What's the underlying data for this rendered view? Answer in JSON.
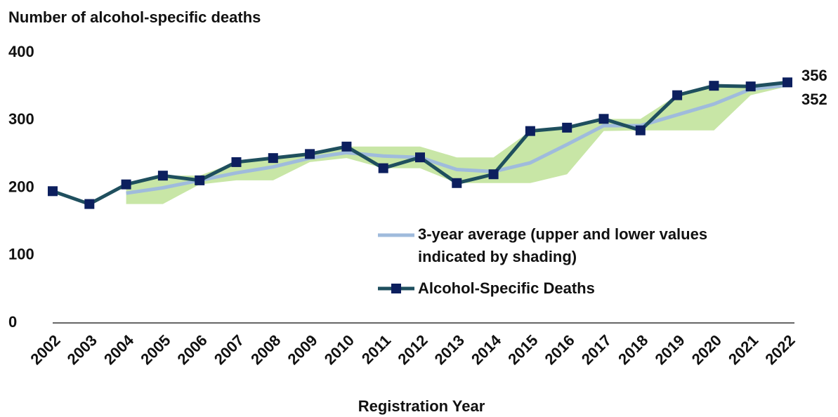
{
  "chart_data": {
    "type": "line",
    "title": "Number of alcohol-specific deaths",
    "x_label": "Registration Year",
    "categories": [
      "2002",
      "2003",
      "2004",
      "2005",
      "2006",
      "2007",
      "2008",
      "2009",
      "2010",
      "2011",
      "2012",
      "2013",
      "2014",
      "2015",
      "2016",
      "2017",
      "2018",
      "2019",
      "2020",
      "2021",
      "2022"
    ],
    "series": [
      {
        "name": "3-year average (upper and lower values indicated by shading)",
        "color": "#9fbbdc",
        "band_color": "#c8e6a6",
        "values": [
          null,
          null,
          192,
          200,
          211,
          222,
          231,
          244,
          252,
          247,
          245,
          227,
          224,
          237,
          264,
          292,
          292,
          308,
          324,
          346,
          352
        ],
        "lower": [
          null,
          null,
          176,
          176,
          205,
          211,
          211,
          238,
          244,
          229,
          229,
          207,
          207,
          207,
          220,
          284,
          285,
          285,
          285,
          337,
          350
        ],
        "upper": [
          null,
          null,
          205,
          218,
          218,
          238,
          244,
          250,
          261,
          261,
          261,
          245,
          245,
          284,
          289,
          302,
          302,
          337,
          351,
          351,
          356
        ]
      },
      {
        "name": "Alcohol-Specific Deaths",
        "color": "#1f4f5e",
        "marker_color": "#0c1f5e",
        "values": [
          195,
          176,
          205,
          218,
          211,
          238,
          244,
          250,
          261,
          229,
          245,
          207,
          220,
          284,
          289,
          302,
          285,
          337,
          351,
          350,
          356
        ]
      }
    ],
    "ylim": [
      0,
      400
    ],
    "yticks": [
      0,
      100,
      200,
      300,
      400
    ],
    "grid": false
  }
}
